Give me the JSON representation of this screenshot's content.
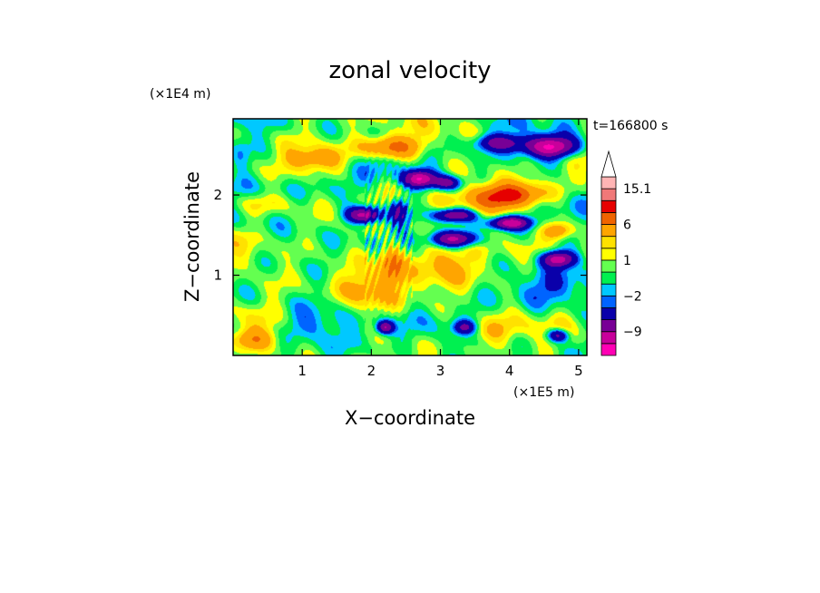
{
  "chart_data": {
    "type": "heatmap",
    "title": "zonal velocity",
    "xlabel": "X−coordinate",
    "ylabel": "Z−coordinate",
    "x_scale_note": "(×1E5 m)",
    "y_scale_note": "(×1E4 m)",
    "time_label": "t=166800 s",
    "xlim": [
      0,
      5.12
    ],
    "ylim": [
      0,
      2.95
    ],
    "x_ticks": [
      1,
      2,
      3,
      4,
      5
    ],
    "x_tick_labels": [
      "1",
      "2",
      "3",
      "4",
      "5"
    ],
    "y_ticks": [
      1,
      2
    ],
    "y_tick_labels": [
      "1",
      "2"
    ],
    "colorbar": {
      "levels": [
        -15,
        -12,
        -9,
        -6,
        -3,
        -2,
        -1,
        0,
        1,
        2,
        3,
        6,
        9,
        12,
        15.1
      ],
      "colors": [
        "#ff00b4",
        "#c8009b",
        "#780096",
        "#0a00aa",
        "#0064ff",
        "#00c8ff",
        "#00f050",
        "#64ff50",
        "#ffff00",
        "#ffe100",
        "#ffa500",
        "#f06400",
        "#e60000",
        "#f07878",
        "#ffb4b4"
      ],
      "max_extend_color": "#ffffff",
      "labels": [
        {
          "value": 15.1,
          "text": "15.1"
        },
        {
          "value": 6,
          "text": "6"
        },
        {
          "value": 1,
          "text": "1"
        },
        {
          "value": -2,
          "text": "−2"
        },
        {
          "value": -9,
          "text": "−9"
        }
      ]
    },
    "features": [
      {
        "x": 2.3,
        "z": 2.6,
        "u": 8,
        "sx": 0.45,
        "sz": 0.14
      },
      {
        "x": 1.2,
        "z": 2.45,
        "u": 5,
        "sx": 0.4,
        "sz": 0.15
      },
      {
        "x": 4.1,
        "z": 2.0,
        "u": 10,
        "sx": 0.5,
        "sz": 0.15
      },
      {
        "x": 4.6,
        "z": 2.6,
        "u": -13,
        "sx": 0.4,
        "sz": 0.13
      },
      {
        "x": 3.85,
        "z": 2.65,
        "u": -7,
        "sx": 0.35,
        "sz": 0.1
      },
      {
        "x": 2.7,
        "z": 2.2,
        "u": -11,
        "sx": 0.22,
        "sz": 0.1
      },
      {
        "x": 3.1,
        "z": 2.15,
        "u": -8,
        "sx": 0.2,
        "sz": 0.09
      },
      {
        "x": 1.9,
        "z": 1.75,
        "u": -11,
        "sx": 0.25,
        "sz": 0.1
      },
      {
        "x": 2.4,
        "z": 1.8,
        "u": -6,
        "sx": 0.12,
        "sz": 0.15
      },
      {
        "x": 3.2,
        "z": 1.75,
        "u": -9,
        "sx": 0.3,
        "sz": 0.08
      },
      {
        "x": 3.2,
        "z": 1.45,
        "u": -11,
        "sx": 0.35,
        "sz": 0.1
      },
      {
        "x": 4.0,
        "z": 1.65,
        "u": -11,
        "sx": 0.3,
        "sz": 0.08
      },
      {
        "x": 4.7,
        "z": 1.2,
        "u": -11,
        "sx": 0.25,
        "sz": 0.1
      },
      {
        "x": 4.7,
        "z": 1.55,
        "u": 5,
        "sx": 0.2,
        "sz": 0.1
      },
      {
        "x": 2.3,
        "z": 1.15,
        "u": 7,
        "sx": 0.18,
        "sz": 0.25
      },
      {
        "x": 3.05,
        "z": 1.2,
        "u": 5,
        "sx": 0.4,
        "sz": 0.35
      },
      {
        "x": 3.7,
        "z": 1.95,
        "u": 4,
        "sx": 0.35,
        "sz": 0.15
      },
      {
        "x": 0.5,
        "z": 1.9,
        "u": 3,
        "sx": 0.5,
        "sz": 0.15
      },
      {
        "x": 2.2,
        "z": 0.35,
        "u": -9,
        "sx": 0.12,
        "sz": 0.08
      },
      {
        "x": 3.35,
        "z": 0.35,
        "u": -6,
        "sx": 0.15,
        "sz": 0.08
      },
      {
        "x": 4.7,
        "z": 0.25,
        "u": -8,
        "sx": 0.15,
        "sz": 0.08
      },
      {
        "x": 1.1,
        "z": 0.4,
        "u": -2.5,
        "sx": 0.35,
        "sz": 0.2
      },
      {
        "x": 0.3,
        "z": 0.2,
        "u": 4,
        "sx": 0.3,
        "sz": 0.12
      },
      {
        "x": 1.5,
        "z": 2.1,
        "u": -2.5,
        "sx": 0.4,
        "sz": 0.15
      },
      {
        "x": 4.4,
        "z": 0.8,
        "u": -2.5,
        "sx": 0.4,
        "sz": 0.2
      },
      {
        "x": 0.7,
        "z": 0.9,
        "u": 1.5,
        "sx": 0.6,
        "sz": 0.3
      },
      {
        "x": 1.9,
        "z": 0.8,
        "u": 3,
        "sx": 0.3,
        "sz": 0.3
      },
      {
        "x": 3.7,
        "z": 0.3,
        "u": 3,
        "sx": 0.4,
        "sz": 0.15
      },
      {
        "x": 0.1,
        "z": 2.5,
        "u": -2.5,
        "sx": 0.15,
        "sz": 0.2
      }
    ]
  }
}
